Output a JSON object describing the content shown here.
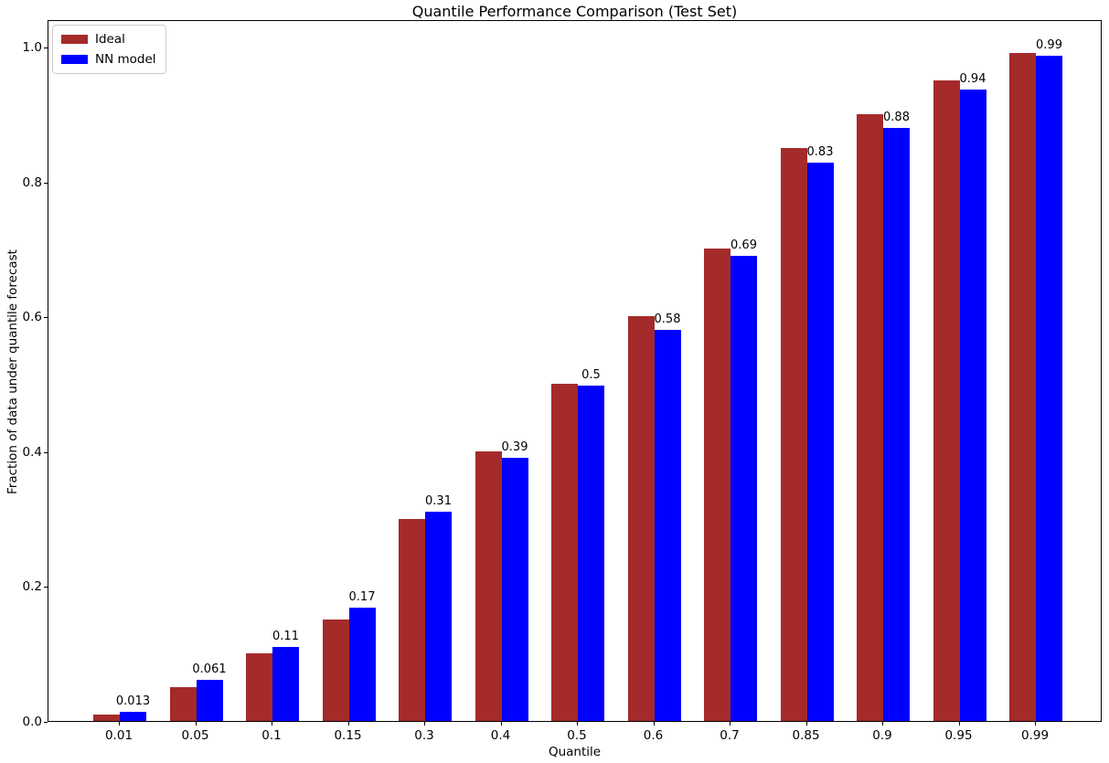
{
  "chart_data": {
    "type": "bar",
    "title": "Quantile Performance Comparison (Test Set)",
    "xlabel": "Quantile",
    "ylabel": "Fraction of data under quantile forecast",
    "categories": [
      "0.01",
      "0.05",
      "0.1",
      "0.15",
      "0.3",
      "0.4",
      "0.5",
      "0.6",
      "0.7",
      "0.85",
      "0.9",
      "0.95",
      "0.99"
    ],
    "series": [
      {
        "name": "Ideal",
        "color": "#A52A2A",
        "values": [
          0.01,
          0.05,
          0.1,
          0.15,
          0.3,
          0.4,
          0.5,
          0.6,
          0.7,
          0.85,
          0.9,
          0.95,
          0.99
        ]
      },
      {
        "name": "NN model",
        "color": "#0000FF",
        "values": [
          0.013,
          0.061,
          0.11,
          0.168,
          0.31,
          0.39,
          0.497,
          0.58,
          0.69,
          0.828,
          0.879,
          0.937,
          0.987
        ]
      }
    ],
    "bar_labels": [
      "0.013",
      "0.061",
      "0.11",
      "0.17",
      "0.31",
      "0.39",
      "0.5",
      "0.58",
      "0.69",
      "0.83",
      "0.88",
      "0.94",
      "0.99"
    ],
    "yticks": [
      "0.0",
      "0.2",
      "0.4",
      "0.6",
      "0.8",
      "1.0"
    ],
    "ylim": [
      0,
      1.04
    ],
    "xlim_note": "13 evenly spaced category groups",
    "legend_position": "upper-left",
    "grid": false,
    "annotations": "NN model bar values labeled above blue bars"
  }
}
